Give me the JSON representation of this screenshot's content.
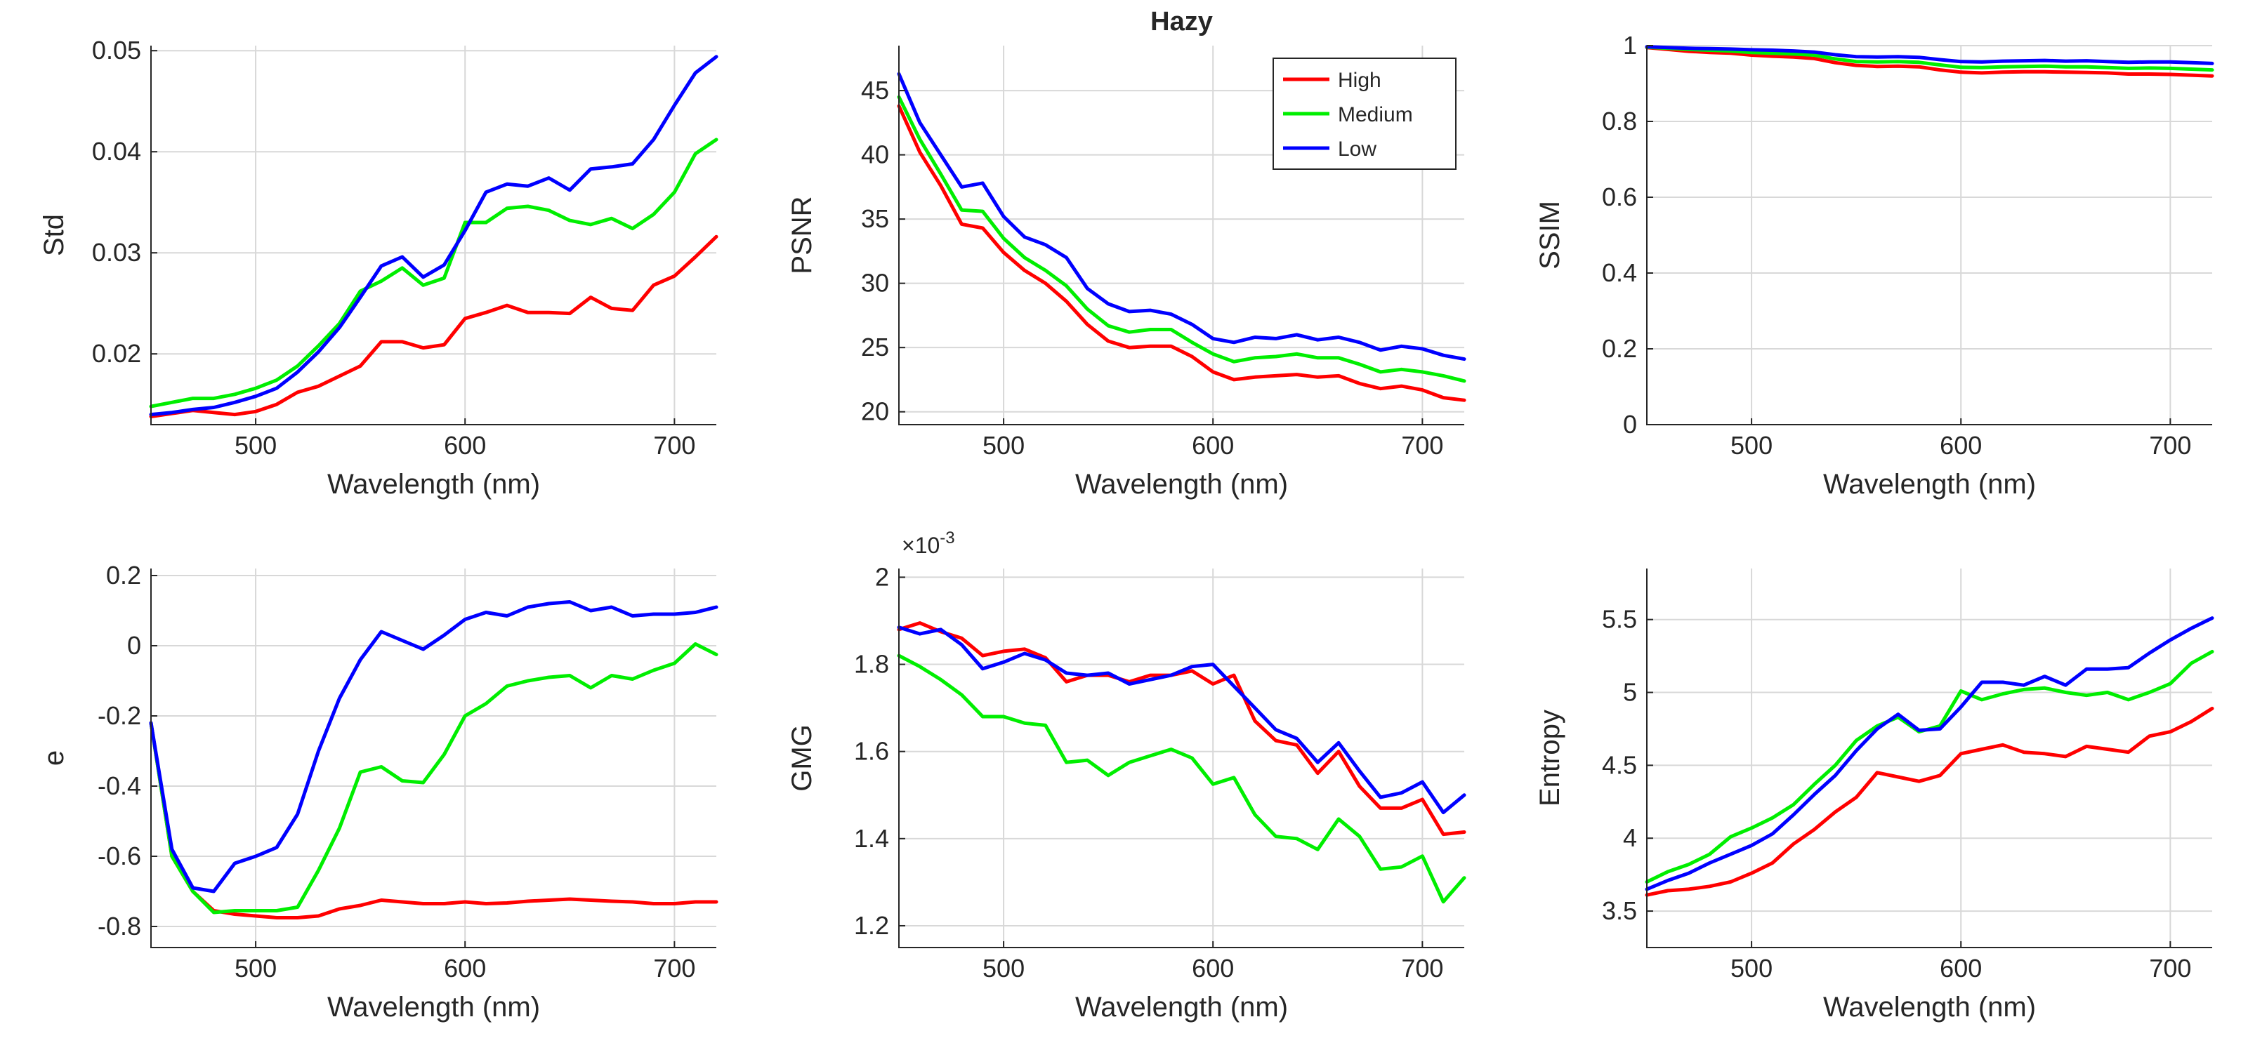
{
  "chart_data": [
    {
      "type": "line",
      "title": "",
      "xlabel": "Wavelength (nm)",
      "ylabel": "Std",
      "xlim": [
        450,
        720
      ],
      "ylim": [
        0.013,
        0.0505
      ],
      "xticks": [
        500,
        600,
        700
      ],
      "xtick_labels": [
        "500",
        "600",
        "700"
      ],
      "yticks": [
        0.02,
        0.03,
        0.04,
        0.05
      ],
      "ytick_labels": [
        "0.02",
        "0.03",
        "0.04",
        "0.05"
      ],
      "x": [
        450,
        460,
        470,
        480,
        490,
        500,
        510,
        520,
        530,
        540,
        550,
        560,
        570,
        580,
        590,
        600,
        610,
        620,
        630,
        640,
        650,
        660,
        670,
        680,
        690,
        700,
        710,
        720
      ],
      "series": [
        {
          "name": "High",
          "color": "#ff0000",
          "values": [
            0.0138,
            0.0141,
            0.0144,
            0.0142,
            0.014,
            0.0143,
            0.015,
            0.0162,
            0.0168,
            0.0178,
            0.0188,
            0.0212,
            0.0212,
            0.0206,
            0.0209,
            0.0235,
            0.0241,
            0.0248,
            0.0241,
            0.0241,
            0.024,
            0.0256,
            0.0245,
            0.0243,
            0.0268,
            0.0277,
            0.0296,
            0.0316
          ]
        },
        {
          "name": "Medium",
          "color": "#00ee00",
          "values": [
            0.0148,
            0.0152,
            0.0156,
            0.0156,
            0.016,
            0.0166,
            0.0174,
            0.0188,
            0.0208,
            0.023,
            0.0262,
            0.0272,
            0.0285,
            0.0268,
            0.0275,
            0.033,
            0.033,
            0.0344,
            0.0346,
            0.0342,
            0.0332,
            0.0328,
            0.0334,
            0.0324,
            0.0338,
            0.036,
            0.0398,
            0.0412
          ]
        },
        {
          "name": "Low",
          "color": "#0000ff",
          "values": [
            0.014,
            0.0142,
            0.0145,
            0.0147,
            0.0152,
            0.0158,
            0.0166,
            0.0182,
            0.0202,
            0.0226,
            0.0256,
            0.0287,
            0.0296,
            0.0276,
            0.0288,
            0.0322,
            0.036,
            0.0368,
            0.0366,
            0.0374,
            0.0362,
            0.0383,
            0.0385,
            0.0388,
            0.0412,
            0.0446,
            0.0478,
            0.0494
          ]
        }
      ]
    },
    {
      "type": "line",
      "title": "Hazy",
      "xlabel": "Wavelength (nm)",
      "ylabel": "PSNR",
      "xlim": [
        450,
        720
      ],
      "ylim": [
        19,
        48.5
      ],
      "xticks": [
        500,
        600,
        700
      ],
      "xtick_labels": [
        "500",
        "600",
        "700"
      ],
      "yticks": [
        20,
        25,
        30,
        35,
        40,
        45
      ],
      "ytick_labels": [
        "20",
        "25",
        "30",
        "35",
        "40",
        "45"
      ],
      "x": [
        450,
        460,
        470,
        480,
        490,
        500,
        510,
        520,
        530,
        540,
        550,
        560,
        570,
        580,
        590,
        600,
        610,
        620,
        630,
        640,
        650,
        660,
        670,
        680,
        690,
        700,
        710,
        720
      ],
      "series": [
        {
          "name": "High",
          "color": "#ff0000",
          "values": [
            43.8,
            40.2,
            37.6,
            34.6,
            34.3,
            32.4,
            31.0,
            30.0,
            28.6,
            26.8,
            25.5,
            25.0,
            25.1,
            25.1,
            24.3,
            23.1,
            22.5,
            22.7,
            22.8,
            22.9,
            22.7,
            22.8,
            22.2,
            21.8,
            22.0,
            21.7,
            21.1,
            20.9
          ]
        },
        {
          "name": "Medium",
          "color": "#00ee00",
          "values": [
            44.5,
            41.2,
            38.5,
            35.7,
            35.6,
            33.5,
            32.0,
            31.0,
            29.8,
            28.0,
            26.7,
            26.2,
            26.4,
            26.4,
            25.4,
            24.5,
            23.9,
            24.2,
            24.3,
            24.5,
            24.2,
            24.2,
            23.7,
            23.1,
            23.3,
            23.1,
            22.8,
            22.4
          ]
        },
        {
          "name": "Low",
          "color": "#0000ff",
          "values": [
            46.3,
            42.5,
            40.0,
            37.5,
            37.8,
            35.2,
            33.6,
            33.0,
            32.0,
            29.6,
            28.4,
            27.8,
            27.9,
            27.6,
            26.8,
            25.7,
            25.4,
            25.8,
            25.7,
            26.0,
            25.6,
            25.8,
            25.4,
            24.8,
            25.1,
            24.9,
            24.4,
            24.1
          ]
        }
      ],
      "legend": {
        "location": "top-right",
        "entries": [
          "High",
          "Medium",
          "Low"
        ]
      }
    },
    {
      "type": "line",
      "title": "",
      "xlabel": "Wavelength (nm)",
      "ylabel": "SSIM",
      "xlim": [
        450,
        720
      ],
      "ylim": [
        0,
        1
      ],
      "xticks": [
        500,
        600,
        700
      ],
      "xtick_labels": [
        "500",
        "600",
        "700"
      ],
      "yticks": [
        0,
        0.2,
        0.4,
        0.6,
        0.8,
        1
      ],
      "ytick_labels": [
        "0",
        "0.2",
        "0.4",
        "0.6",
        "0.8",
        "1"
      ],
      "x": [
        450,
        460,
        470,
        480,
        490,
        500,
        510,
        520,
        530,
        540,
        550,
        560,
        570,
        580,
        590,
        600,
        610,
        620,
        630,
        640,
        650,
        660,
        670,
        680,
        690,
        700,
        710,
        720
      ],
      "series": [
        {
          "name": "High",
          "color": "#ff0000",
          "values": [
            0.995,
            0.99,
            0.985,
            0.982,
            0.98,
            0.975,
            0.972,
            0.97,
            0.966,
            0.955,
            0.948,
            0.945,
            0.946,
            0.944,
            0.936,
            0.93,
            0.928,
            0.93,
            0.931,
            0.931,
            0.93,
            0.929,
            0.928,
            0.925,
            0.925,
            0.924,
            0.922,
            0.92
          ]
        },
        {
          "name": "Medium",
          "color": "#00ee00",
          "values": [
            0.996,
            0.993,
            0.99,
            0.988,
            0.986,
            0.982,
            0.98,
            0.978,
            0.975,
            0.965,
            0.958,
            0.957,
            0.958,
            0.956,
            0.949,
            0.943,
            0.942,
            0.944,
            0.945,
            0.946,
            0.944,
            0.944,
            0.942,
            0.94,
            0.941,
            0.94,
            0.938,
            0.936
          ]
        },
        {
          "name": "Low",
          "color": "#0000ff",
          "values": [
            0.997,
            0.995,
            0.993,
            0.992,
            0.991,
            0.989,
            0.988,
            0.986,
            0.983,
            0.976,
            0.971,
            0.97,
            0.971,
            0.969,
            0.963,
            0.958,
            0.957,
            0.959,
            0.96,
            0.961,
            0.959,
            0.96,
            0.958,
            0.956,
            0.957,
            0.957,
            0.955,
            0.953
          ]
        }
      ]
    },
    {
      "type": "line",
      "title": "",
      "xlabel": "Wavelength (nm)",
      "ylabel": "e",
      "xlim": [
        450,
        720
      ],
      "ylim": [
        -0.86,
        0.22
      ],
      "xticks": [
        500,
        600,
        700
      ],
      "xtick_labels": [
        "500",
        "600",
        "700"
      ],
      "yticks": [
        -0.8,
        -0.6,
        -0.4,
        -0.2,
        0,
        0.2
      ],
      "ytick_labels": [
        "-0.8",
        "-0.6",
        "-0.4",
        "-0.2",
        "0",
        "0.2"
      ],
      "x": [
        450,
        460,
        470,
        480,
        490,
        500,
        510,
        520,
        530,
        540,
        550,
        560,
        570,
        580,
        590,
        600,
        610,
        620,
        630,
        640,
        650,
        660,
        670,
        680,
        690,
        700,
        710,
        720
      ],
      "series": [
        {
          "name": "High",
          "color": "#ff0000",
          "values": [
            -0.22,
            -0.6,
            -0.7,
            -0.755,
            -0.765,
            -0.77,
            -0.775,
            -0.775,
            -0.77,
            -0.75,
            -0.74,
            -0.725,
            -0.73,
            -0.735,
            -0.735,
            -0.73,
            -0.735,
            -0.733,
            -0.728,
            -0.725,
            -0.722,
            -0.725,
            -0.728,
            -0.73,
            -0.735,
            -0.735,
            -0.73,
            -0.73
          ]
        },
        {
          "name": "Medium",
          "color": "#00ee00",
          "values": [
            -0.22,
            -0.6,
            -0.7,
            -0.76,
            -0.755,
            -0.755,
            -0.755,
            -0.745,
            -0.64,
            -0.52,
            -0.36,
            -0.345,
            -0.385,
            -0.39,
            -0.31,
            -0.2,
            -0.165,
            -0.115,
            -0.1,
            -0.09,
            -0.085,
            -0.12,
            -0.085,
            -0.095,
            -0.07,
            -0.05,
            0.005,
            -0.025
          ]
        },
        {
          "name": "Low",
          "color": "#0000ff",
          "values": [
            -0.22,
            -0.58,
            -0.69,
            -0.7,
            -0.62,
            -0.6,
            -0.575,
            -0.48,
            -0.3,
            -0.15,
            -0.04,
            0.04,
            0.015,
            -0.01,
            0.03,
            0.075,
            0.095,
            0.085,
            0.11,
            0.12,
            0.125,
            0.1,
            0.11,
            0.085,
            0.09,
            0.09,
            0.095,
            0.11
          ]
        }
      ]
    },
    {
      "type": "line",
      "title": "",
      "xlabel": "Wavelength (nm)",
      "ylabel": "GMG",
      "xlim": [
        450,
        720
      ],
      "ylim": [
        1.15,
        2.02
      ],
      "xticks": [
        500,
        600,
        700
      ],
      "xtick_labels": [
        "500",
        "600",
        "700"
      ],
      "yticks": [
        1.2,
        1.4,
        1.6,
        1.8,
        2
      ],
      "ytick_labels": [
        "1.2",
        "1.4",
        "1.6",
        "1.8",
        "2"
      ],
      "y_exponent_label": "×10",
      "y_exponent_power": "-3",
      "x": [
        450,
        460,
        470,
        480,
        490,
        500,
        510,
        520,
        530,
        540,
        550,
        560,
        570,
        580,
        590,
        600,
        610,
        620,
        630,
        640,
        650,
        660,
        670,
        680,
        690,
        700,
        710,
        720
      ],
      "series": [
        {
          "name": "High",
          "color": "#ff0000",
          "values": [
            1.88,
            1.895,
            1.875,
            1.86,
            1.82,
            1.83,
            1.835,
            1.815,
            1.76,
            1.775,
            1.775,
            1.76,
            1.775,
            1.775,
            1.785,
            1.755,
            1.775,
            1.67,
            1.625,
            1.615,
            1.55,
            1.6,
            1.52,
            1.47,
            1.47,
            1.49,
            1.41,
            1.415
          ]
        },
        {
          "name": "Medium",
          "color": "#00ee00",
          "values": [
            1.82,
            1.795,
            1.765,
            1.73,
            1.68,
            1.68,
            1.665,
            1.66,
            1.575,
            1.58,
            1.545,
            1.575,
            1.59,
            1.605,
            1.585,
            1.525,
            1.54,
            1.455,
            1.405,
            1.4,
            1.375,
            1.445,
            1.405,
            1.33,
            1.335,
            1.36,
            1.255,
            1.31
          ]
        },
        {
          "name": "Low",
          "color": "#0000ff",
          "values": [
            1.885,
            1.87,
            1.88,
            1.845,
            1.79,
            1.805,
            1.825,
            1.81,
            1.78,
            1.775,
            1.78,
            1.755,
            1.765,
            1.775,
            1.795,
            1.8,
            1.75,
            1.7,
            1.65,
            1.63,
            1.575,
            1.62,
            1.555,
            1.495,
            1.505,
            1.53,
            1.46,
            1.5
          ]
        }
      ]
    },
    {
      "type": "line",
      "title": "",
      "xlabel": "Wavelength (nm)",
      "ylabel": "Entropy",
      "xlim": [
        450,
        720
      ],
      "ylim": [
        3.25,
        5.85
      ],
      "xticks": [
        500,
        600,
        700
      ],
      "xtick_labels": [
        "500",
        "600",
        "700"
      ],
      "yticks": [
        3.5,
        4,
        4.5,
        5,
        5.5
      ],
      "ytick_labels": [
        "3.5",
        "4",
        "4.5",
        "5",
        "5.5"
      ],
      "x": [
        450,
        460,
        470,
        480,
        490,
        500,
        510,
        520,
        530,
        540,
        550,
        560,
        570,
        580,
        590,
        600,
        610,
        620,
        630,
        640,
        650,
        660,
        670,
        680,
        690,
        700,
        710,
        720
      ],
      "series": [
        {
          "name": "High",
          "color": "#ff0000",
          "values": [
            3.61,
            3.64,
            3.65,
            3.67,
            3.7,
            3.76,
            3.83,
            3.96,
            4.06,
            4.18,
            4.28,
            4.45,
            4.42,
            4.39,
            4.43,
            4.58,
            4.61,
            4.64,
            4.59,
            4.58,
            4.56,
            4.63,
            4.61,
            4.59,
            4.7,
            4.73,
            4.8,
            4.89
          ]
        },
        {
          "name": "Medium",
          "color": "#00ee00",
          "values": [
            3.7,
            3.77,
            3.82,
            3.89,
            4.01,
            4.07,
            4.14,
            4.23,
            4.37,
            4.5,
            4.67,
            4.77,
            4.83,
            4.73,
            4.77,
            5.01,
            4.95,
            4.99,
            5.02,
            5.03,
            5.0,
            4.98,
            5.0,
            4.95,
            5.0,
            5.06,
            5.2,
            5.28
          ]
        },
        {
          "name": "Low",
          "color": "#0000ff",
          "values": [
            3.65,
            3.71,
            3.76,
            3.83,
            3.89,
            3.95,
            4.03,
            4.16,
            4.3,
            4.43,
            4.6,
            4.75,
            4.85,
            4.74,
            4.75,
            4.9,
            5.07,
            5.07,
            5.05,
            5.11,
            5.05,
            5.16,
            5.16,
            5.17,
            5.27,
            5.36,
            5.44,
            5.51
          ]
        }
      ]
    }
  ]
}
